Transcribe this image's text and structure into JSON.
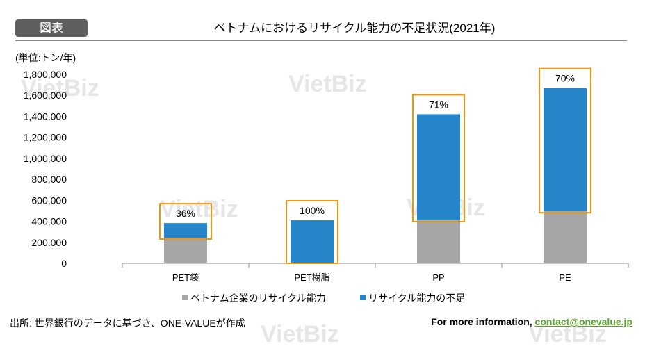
{
  "header": {
    "badge": "図表",
    "title": "ベトナムにおけるリサイクル能力の不足状況(2021年)",
    "unit": "(単位:トン/年)"
  },
  "watermark": "VietBiz",
  "chart_data": {
    "type": "bar",
    "stacked": true,
    "title": "ベトナムにおけるリサイクル能力の不足状況(2021年)",
    "ylabel": "(単位:トン/年)",
    "ylim": [
      0,
      1800000
    ],
    "yticks": [
      0,
      200000,
      400000,
      600000,
      800000,
      1000000,
      1200000,
      1400000,
      1600000,
      1800000
    ],
    "ytick_labels": [
      "0",
      "200,000",
      "400,000",
      "600,000",
      "800,000",
      "1,000,000",
      "1,200,000",
      "1,400,000",
      "1,600,000",
      "1,800,000"
    ],
    "categories": [
      "PET袋",
      "PET樹脂",
      "PP",
      "PE"
    ],
    "series": [
      {
        "name": "ベトナム企業のリサイクル能力",
        "color": "#a6a6a6",
        "values": [
          245000,
          0,
          410000,
          495000
        ]
      },
      {
        "name": "リサイクル能力の不足",
        "color": "#2585c8",
        "values": [
          138000,
          410000,
          1010000,
          1175000
        ]
      }
    ],
    "annotations": [
      "36%",
      "100%",
      "71%",
      "70%"
    ],
    "highlight_color": "#f0960a",
    "legend": "bottom"
  },
  "footer": {
    "source": "出所: 世界銀行のデータに基づき、ONE-VALUEが作成",
    "more": "For more information, ",
    "email": "contact@onevalue.jp"
  }
}
